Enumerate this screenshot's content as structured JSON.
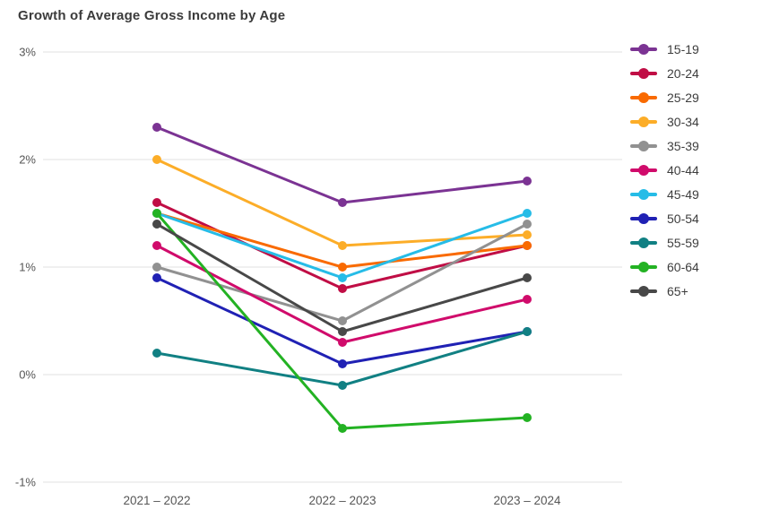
{
  "title": "Growth of Average Gross Income by Age",
  "chart_data": {
    "type": "line",
    "title": "Growth of Average Gross Income by Age",
    "categories": [
      "2021 – 2022",
      "2022 – 2023",
      "2023 – 2024"
    ],
    "series": [
      {
        "name": "15-19",
        "color": "#7B3393",
        "values": [
          2.3,
          1.6,
          1.8
        ]
      },
      {
        "name": "20-24",
        "color": "#C00D45",
        "values": [
          1.6,
          0.8,
          1.2
        ]
      },
      {
        "name": "25-29",
        "color": "#F96A00",
        "values": [
          1.5,
          1.0,
          1.2
        ]
      },
      {
        "name": "30-34",
        "color": "#FCAD28",
        "values": [
          2.0,
          1.2,
          1.3
        ]
      },
      {
        "name": "35-39",
        "color": "#919191",
        "values": [
          1.0,
          0.5,
          1.4
        ]
      },
      {
        "name": "40-44",
        "color": "#D00B6B",
        "values": [
          1.2,
          0.3,
          0.7
        ]
      },
      {
        "name": "45-49",
        "color": "#26BCE7",
        "values": [
          1.5,
          0.9,
          1.5
        ]
      },
      {
        "name": "50-54",
        "color": "#2021B4",
        "values": [
          0.9,
          0.1,
          0.4
        ]
      },
      {
        "name": "55-59",
        "color": "#118083",
        "values": [
          0.2,
          -0.1,
          0.4
        ]
      },
      {
        "name": "60-64",
        "color": "#23B223",
        "values": [
          1.5,
          -0.5,
          -0.4
        ]
      },
      {
        "name": "65+",
        "color": "#484848",
        "values": [
          1.4,
          0.4,
          0.9
        ]
      }
    ],
    "xlabel": "",
    "ylabel": "",
    "y_ticks": [
      "3%",
      "2%",
      "1%",
      "0%",
      "-1%"
    ],
    "y_tick_values": [
      3,
      2,
      1,
      0,
      -1
    ],
    "ylim": [
      -1,
      3
    ],
    "grid": "horizontal",
    "legend_position": "right",
    "grid_color": "#e2e2e2",
    "axis_text_color": "#565656"
  }
}
